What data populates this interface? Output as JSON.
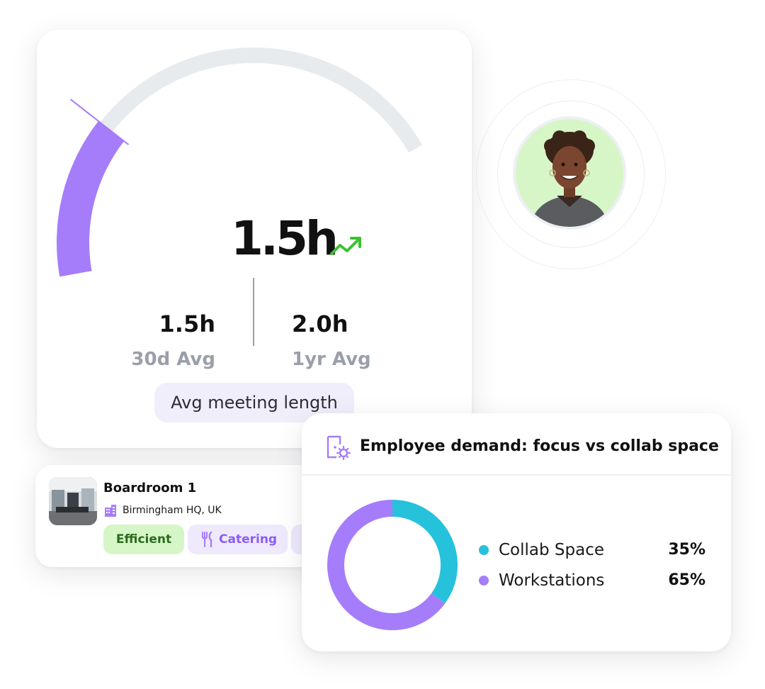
{
  "gauge_card": {
    "value": "1.5h",
    "trend": "up",
    "fill_fraction": 0.3,
    "stats": [
      {
        "value": "1.5h",
        "label": "30d Avg"
      },
      {
        "value": "2.0h",
        "label": "1yr Avg"
      }
    ],
    "caption": "Avg meeting length"
  },
  "room_card": {
    "name": "Boardroom 1",
    "location": "Birmingham HQ, UK",
    "tags": [
      {
        "label": "Efficient",
        "icon": "none"
      },
      {
        "label": "Catering",
        "icon": "utensils-icon"
      }
    ]
  },
  "demand_card": {
    "title": "Employee demand: focus vs collab space",
    "icon": "door-gear-icon"
  },
  "colors": {
    "accent_purple": "#a57dfb",
    "collab_cyan": "#26c2dc",
    "track_gray": "#e8ebee",
    "trend_green": "#39c32e"
  },
  "chart_data": {
    "type": "pie",
    "categories": [
      "Collab Space",
      "Workstations"
    ],
    "values": [
      35,
      65
    ],
    "labels": [
      "35%",
      "65%"
    ],
    "colors": [
      "#26c2dc",
      "#a57dfb"
    ],
    "title": "Employee demand: focus vs collab space",
    "legend": "right"
  }
}
